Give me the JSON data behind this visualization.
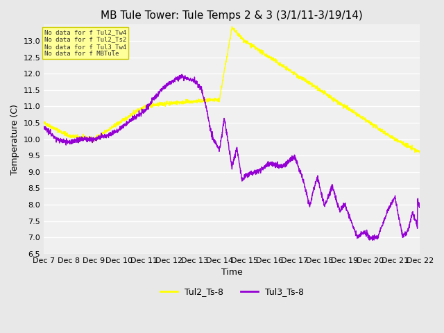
{
  "title": "MB Tule Tower: Tule Temps 2 & 3 (3/1/11-3/19/14)",
  "xlabel": "Time",
  "ylabel": "Temperature (C)",
  "ylim": [
    6.5,
    13.5
  ],
  "xlim": [
    0,
    15
  ],
  "xtick_labels": [
    "Dec 7",
    "Dec 8",
    "Dec 9",
    "Dec 10",
    "Dec 11",
    "Dec 12",
    "Dec 13",
    "Dec 14",
    "Dec 15",
    "Dec 16",
    "Dec 17",
    "Dec 18",
    "Dec 19",
    "Dec 20",
    "Dec 21",
    "Dec 22"
  ],
  "legend_labels": [
    "Tul2_Ts-8",
    "Tul3_Ts-8"
  ],
  "line1_color": "#ffff00",
  "line2_color": "#9400d3",
  "background_color": "#e8e8e8",
  "plot_bg_color": "#f0f0f0",
  "no_data_text": [
    "No data for f Tul2_Tw4",
    "No data for f Tul2_Ts2",
    "No data for f Tul3_Tw4",
    "No data for f MBTule"
  ],
  "no_data_box_color": "#ffff99",
  "no_data_box_border": "#cccc00",
  "title_fontsize": 11,
  "tick_fontsize": 8,
  "label_fontsize": 9
}
